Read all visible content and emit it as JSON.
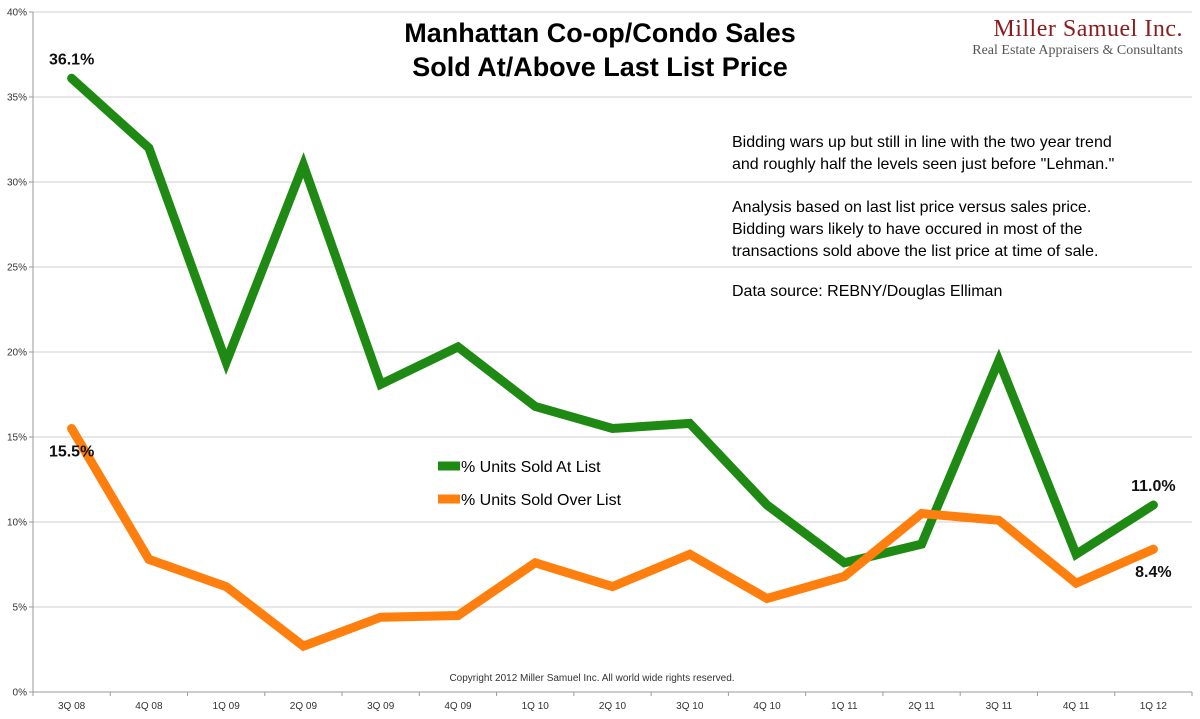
{
  "title_line1": "Manhattan Co-op/Condo Sales",
  "title_line2": "Sold At/Above Last List Price",
  "logo": {
    "name": "Miller Samuel Inc.",
    "tagline": "Real Estate Appraisers & Consultants",
    "color": "#8c1c1c"
  },
  "notes": [
    "Bidding wars up but still in line with the two year trend",
    "and roughly half the levels seen just before \"Lehman.\"",
    "Analysis based on last list price versus sales price.",
    "Bidding wars likely to have occured in most of the",
    "transactions sold above the list price at time of sale.",
    "Data source: REBNY/Douglas Elliman"
  ],
  "copyright": "Copyright 2012 Miller Samuel Inc.  All world wide rights reserved.",
  "chart_data": {
    "type": "line",
    "categories": [
      "3Q 08",
      "4Q 08",
      "1Q 09",
      "2Q 09",
      "3Q 09",
      "4Q 09",
      "1Q 10",
      "2Q 10",
      "3Q 10",
      "4Q 10",
      "1Q 11",
      "2Q 11",
      "3Q 11",
      "4Q 11",
      "1Q 12"
    ],
    "series": [
      {
        "name": "% Units Sold At List",
        "color": "#1f8a13",
        "values": [
          36.1,
          32.0,
          19.4,
          31.0,
          18.1,
          20.3,
          16.8,
          15.5,
          15.8,
          11.0,
          7.6,
          8.7,
          19.5,
          8.1,
          11.0
        ]
      },
      {
        "name": "% Units Sold Over List",
        "color": "#ff7f0e",
        "values": [
          15.5,
          7.8,
          6.2,
          2.7,
          4.4,
          4.5,
          7.6,
          6.2,
          8.1,
          5.5,
          6.8,
          10.5,
          10.1,
          6.4,
          8.4
        ]
      }
    ],
    "data_labels": [
      {
        "series": 0,
        "index": 0,
        "text": "36.1%"
      },
      {
        "series": 1,
        "index": 0,
        "text": "15.5%"
      },
      {
        "series": 0,
        "index": 14,
        "text": "11.0%"
      },
      {
        "series": 1,
        "index": 14,
        "text": "8.4%"
      }
    ],
    "ylim": [
      0,
      40
    ],
    "y_ticks": [
      "0%",
      "5%",
      "10%",
      "15%",
      "20%",
      "25%",
      "30%",
      "35%",
      "40%"
    ],
    "grid": true,
    "legend_position": "center-left",
    "xlabel": "",
    "ylabel": ""
  }
}
